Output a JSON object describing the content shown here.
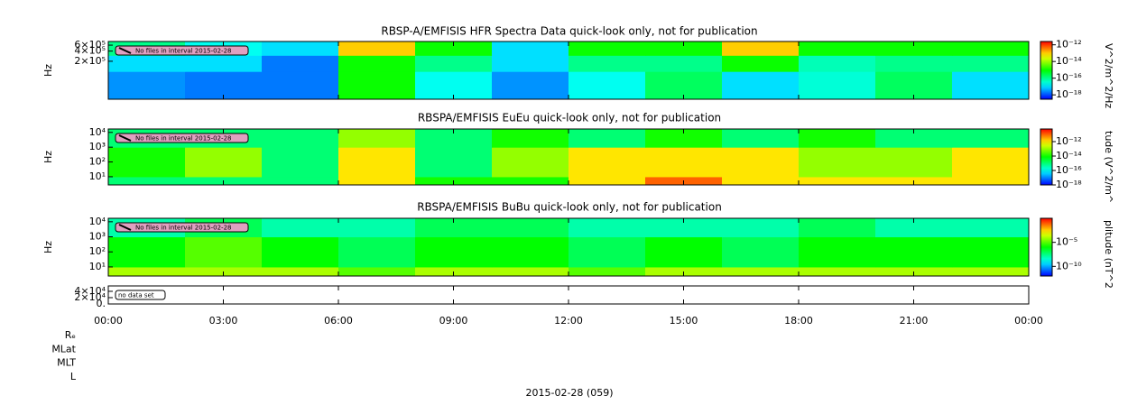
{
  "chart_data": [
    {
      "type": "heatmap",
      "title": "RBSP-A/EMFISIS  HFR Spectra Data quick-look only, not for publication",
      "ylabel": "Hz",
      "zlabel": "V^2/m^2/Hz",
      "annotation": "No files in interval 2015-02-28",
      "log_y": true,
      "log_z": true,
      "ylim": [
        15000,
        770000
      ],
      "yticks": [
        {
          "value": 600000,
          "label": "6×10⁵"
        },
        {
          "value": 400000,
          "label": "4×10⁵"
        },
        {
          "value": 200000,
          "label": "2×10⁵"
        }
      ],
      "zlim": [
        3e-19,
        2.5e-12
      ],
      "zticks": [
        {
          "value": 1e-12,
          "label": "10⁻¹²"
        },
        {
          "value": 1e-14,
          "label": "10⁻¹⁴"
        },
        {
          "value": 1e-16,
          "label": "10⁻¹⁶"
        },
        {
          "value": 1e-18,
          "label": "10⁻¹⁸"
        }
      ],
      "x_edges": [
        0,
        2,
        4,
        6,
        8,
        10,
        12,
        14,
        16,
        18,
        20,
        22,
        24
      ],
      "y_edges": [
        15000,
        100000,
        300000,
        770000
      ],
      "z": [
        [
          3e-18,
          2e-18,
          2e-18,
          1e-15,
          2e-17,
          3e-18,
          2e-17,
          2e-16,
          1e-17,
          3e-17,
          2e-16,
          1e-17
        ],
        [
          1e-17,
          1e-17,
          2e-18,
          1e-15,
          1e-16,
          1e-17,
          1e-16,
          1e-16,
          1e-15,
          5e-17,
          1e-16,
          1e-16
        ],
        [
          1e-16,
          2e-17,
          1e-17,
          1e-13,
          1e-15,
          1e-17,
          1e-15,
          1e-15,
          1e-13,
          1e-15,
          1e-15,
          1e-15
        ]
      ]
    },
    {
      "type": "heatmap",
      "title": "RBSPA/EMFISIS  EuEu quick-look only, not for publication",
      "ylabel": "Hz",
      "zlabel": "tude (V^2/m^",
      "annotation": "No files in interval 2015-02-28",
      "log_y": true,
      "log_z": true,
      "ylim": [
        2.8,
        17000
      ],
      "yticks": [
        {
          "value": 10000,
          "label": "10⁴"
        },
        {
          "value": 1000,
          "label": "10³"
        },
        {
          "value": 100,
          "label": "10²"
        },
        {
          "value": 10,
          "label": "10¹"
        }
      ],
      "zlim": [
        1e-18,
        5.6e-11
      ],
      "zticks": [
        {
          "value": 1e-12,
          "label": "10⁻¹²"
        },
        {
          "value": 1e-14,
          "label": "10⁻¹⁴"
        },
        {
          "value": 1e-16,
          "label": "10⁻¹⁶"
        },
        {
          "value": 1e-18,
          "label": "10⁻¹⁸"
        }
      ],
      "x_edges": [
        0,
        2,
        4,
        6,
        8,
        10,
        12,
        14,
        16,
        18,
        20,
        22,
        24
      ],
      "y_edges": [
        2.8,
        10,
        1000,
        17000
      ],
      "z": [
        [
          1e-15,
          1e-15,
          1e-15,
          1e-12,
          1e-14,
          1e-14,
          1e-12,
          1e-11,
          1e-12,
          1e-12,
          1e-12,
          1e-12
        ],
        [
          1e-14,
          1e-13,
          1e-15,
          1e-12,
          1e-15,
          1e-13,
          1e-12,
          1e-12,
          1e-12,
          1e-13,
          1e-13,
          1e-12
        ],
        [
          1e-15,
          1e-15,
          1e-15,
          1e-13,
          1e-15,
          1e-14,
          1e-15,
          1e-14,
          1e-15,
          1e-14,
          1e-15,
          1e-15
        ]
      ]
    },
    {
      "type": "heatmap",
      "title": "RBSPA/EMFISIS  BuBu quick-look only, not for publication",
      "ylabel": "Hz",
      "zlabel": "plitude (nT^2",
      "annotation": "No files in interval 2015-02-28",
      "log_y": true,
      "log_z": true,
      "ylim": [
        2.5,
        17000
      ],
      "yticks": [
        {
          "value": 10000,
          "label": "10⁴"
        },
        {
          "value": 1000,
          "label": "10³"
        },
        {
          "value": 100,
          "label": "10²"
        },
        {
          "value": 10,
          "label": "10¹"
        }
      ],
      "zlim": [
        1e-12,
        1
      ],
      "zticks": [
        {
          "value": 1e-05,
          "label": "10⁻⁵"
        },
        {
          "value": 1e-10,
          "label": "10⁻¹⁰"
        }
      ],
      "x_edges": [
        0,
        2,
        4,
        6,
        8,
        10,
        12,
        14,
        16,
        18,
        20,
        22,
        24
      ],
      "y_edges": [
        2.5,
        10,
        1000,
        17000
      ],
      "z": [
        [
          0.0001,
          0.0001,
          0.0001,
          1e-05,
          0.0001,
          0.0001,
          1e-05,
          0.0001,
          0.0001,
          0.0001,
          0.0001,
          0.0001
        ],
        [
          1e-06,
          1e-05,
          1e-06,
          1e-07,
          1e-06,
          1e-06,
          1e-07,
          1e-06,
          1e-07,
          1e-06,
          1e-06,
          1e-06
        ],
        [
          1e-08,
          1e-07,
          1e-08,
          1e-08,
          1e-07,
          1e-07,
          1e-08,
          1e-08,
          1e-08,
          1e-07,
          1e-08,
          1e-08
        ]
      ]
    },
    {
      "type": "heatmap",
      "annotation": "no data set",
      "log_y": false,
      "ylim": [
        0,
        57000
      ],
      "yticks": [
        {
          "value": 40000,
          "label": "4×10⁴"
        },
        {
          "value": 20000,
          "label": "2×10⁴"
        },
        {
          "value": 0,
          "label": "0."
        }
      ]
    }
  ],
  "x_axis": {
    "xlim": [
      0,
      24
    ],
    "xticks": [
      {
        "value": 0,
        "label": "00:00"
      },
      {
        "value": 3,
        "label": "03:00"
      },
      {
        "value": 6,
        "label": "06:00"
      },
      {
        "value": 9,
        "label": "09:00"
      },
      {
        "value": 12,
        "label": "12:00"
      },
      {
        "value": 15,
        "label": "15:00"
      },
      {
        "value": 18,
        "label": "18:00"
      },
      {
        "value": 21,
        "label": "21:00"
      },
      {
        "value": 24,
        "label": "00:00"
      }
    ]
  },
  "ephemeris_labels": [
    "Rₑ",
    "MLat",
    "MLT",
    "L"
  ],
  "footer": "2015-02-28 (059)"
}
